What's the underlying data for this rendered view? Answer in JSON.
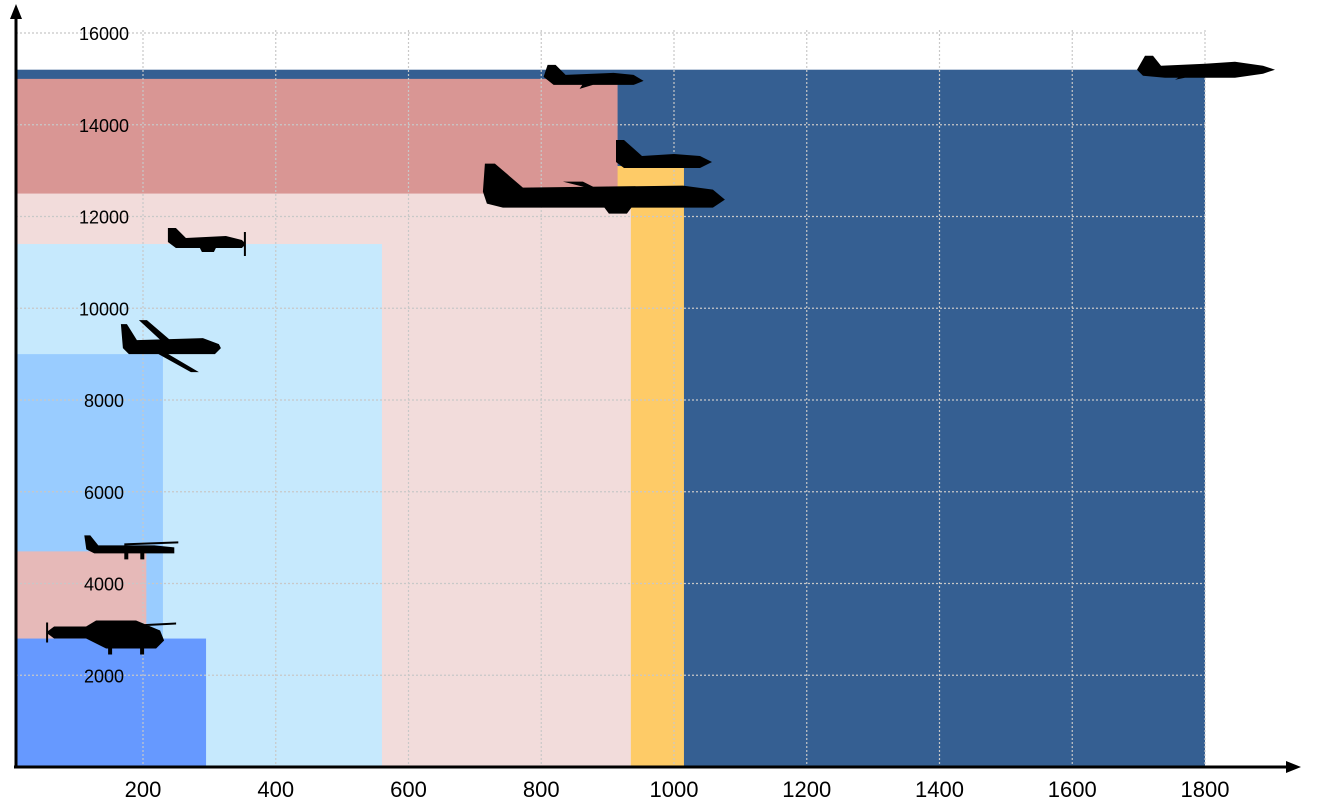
{
  "chart_data": {
    "type": "area",
    "title": "",
    "xlabel": "",
    "ylabel": "",
    "xlim": [
      0,
      1950
    ],
    "ylim": [
      0,
      16800
    ],
    "x_ticks": [
      200,
      400,
      600,
      800,
      1000,
      1200,
      1400,
      1600,
      1800
    ],
    "y_ticks": [
      2000,
      4000,
      6000,
      8000,
      10000,
      12000,
      14000,
      16000
    ],
    "grid": true,
    "legend": "none",
    "series": [
      {
        "x_max": 1800,
        "y_max": 15200,
        "color": "#355F92",
        "icon": "fighter-jet-icon"
      },
      {
        "x_max": 1015,
        "y_max": 13100,
        "color": "#FECB67",
        "icon": "fighter-jet-small-icon"
      },
      {
        "x_max": 915,
        "y_max": 15000,
        "color": "#D99694",
        "icon": "business-jet-icon"
      },
      {
        "x_max": 935,
        "y_max": 12500,
        "color": "#F2DCDB",
        "icon": "airliner-icon"
      },
      {
        "x_max": 560,
        "y_max": 11400,
        "color": "#C6E9FD",
        "icon": "turboprop-icon"
      },
      {
        "x_max": 230,
        "y_max": 9000,
        "color": "#99CCFF",
        "icon": "drone-icon"
      },
      {
        "x_max": 205,
        "y_max": 4700,
        "color": "#E6B9B8",
        "icon": "cessna-icon"
      },
      {
        "x_max": 295,
        "y_max": 2800,
        "color": "#6699FF",
        "icon": "helicopter-icon"
      }
    ]
  }
}
